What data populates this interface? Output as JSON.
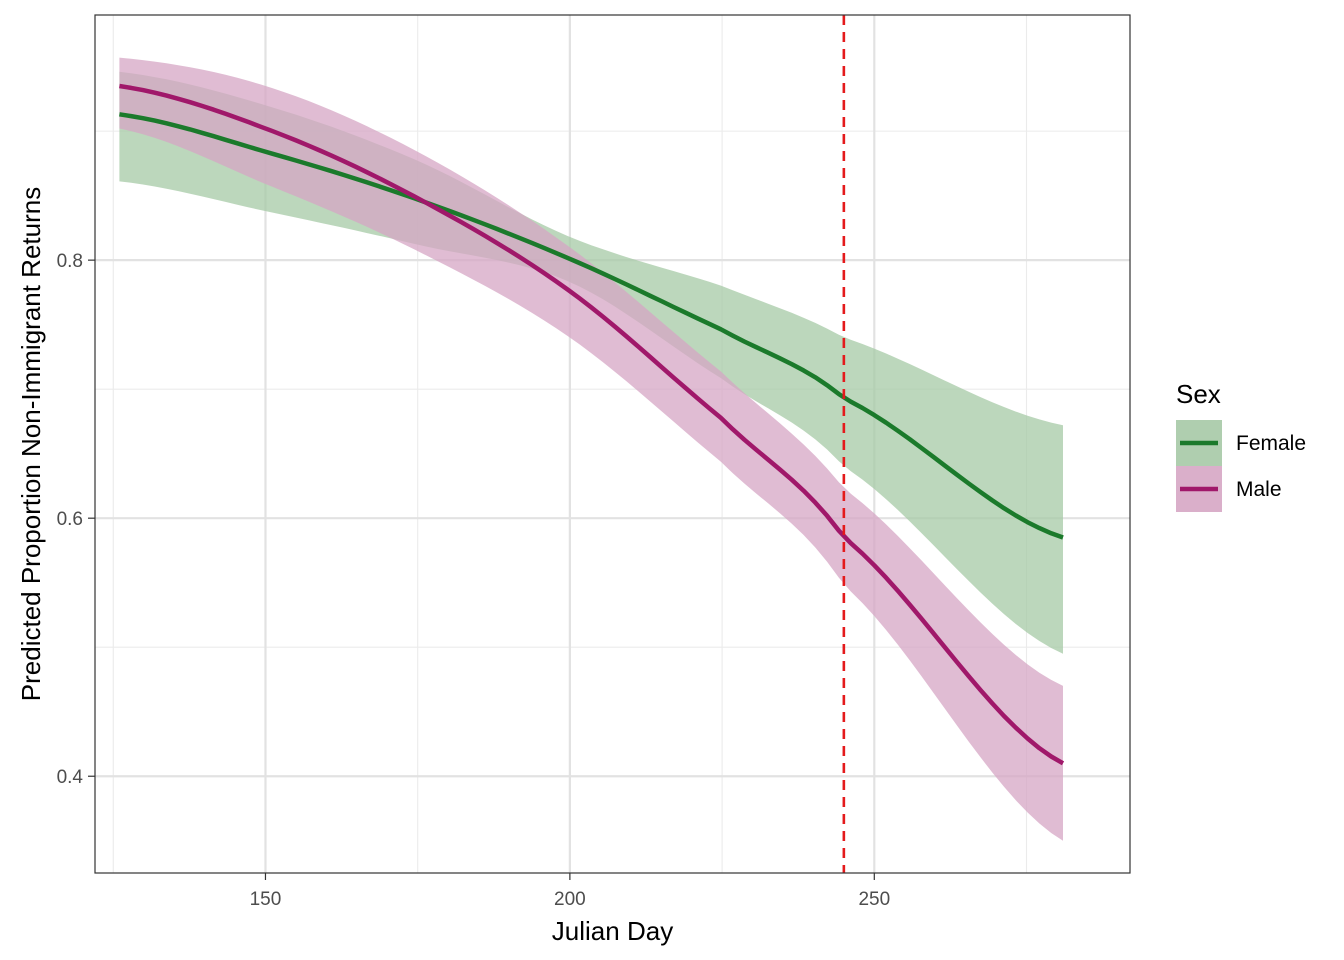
{
  "chart_data": {
    "type": "line",
    "title": "",
    "xlabel": "Julian Day",
    "ylabel": "Predicted Proportion Non-Immigrant Returns",
    "xlim": [
      122,
      292
    ],
    "ylim": [
      0.325,
      0.99
    ],
    "x_ticks_major": [
      150,
      200,
      250
    ],
    "x_ticks_minor": [
      125,
      175,
      225,
      275
    ],
    "y_ticks_major": [
      0.4,
      0.6,
      0.8
    ],
    "y_ticks_major_labels": [
      "0.4",
      "0.6",
      "0.8"
    ],
    "y_ticks_minor": [
      0.5,
      0.7,
      0.9
    ],
    "grid": true,
    "legend": {
      "title": "Sex",
      "position": "right"
    },
    "vline": {
      "x": 245,
      "color": "#e41a1c",
      "style": "dashed"
    },
    "series": [
      {
        "name": "Female",
        "color": "#1b7a2b",
        "band_color": "#a6c9a6",
        "x": [
          126,
          150,
          175,
          200,
          225,
          245,
          281
        ],
        "values": [
          0.913,
          0.884,
          0.847,
          0.801,
          0.746,
          0.693,
          0.585
        ],
        "lower": [
          0.861,
          0.838,
          0.812,
          0.783,
          0.708,
          0.64,
          0.495
        ],
        "upper": [
          0.946,
          0.92,
          0.877,
          0.818,
          0.78,
          0.74,
          0.672
        ]
      },
      {
        "name": "Male",
        "color": "#a0186a",
        "band_color": "#d6a6c4",
        "x": [
          126,
          150,
          175,
          200,
          225,
          245,
          281
        ],
        "values": [
          0.935,
          0.902,
          0.848,
          0.776,
          0.677,
          0.585,
          0.41
        ],
        "lower": [
          0.902,
          0.859,
          0.807,
          0.74,
          0.643,
          0.548,
          0.35
        ],
        "upper": [
          0.957,
          0.935,
          0.884,
          0.81,
          0.713,
          0.623,
          0.47
        ]
      }
    ]
  }
}
